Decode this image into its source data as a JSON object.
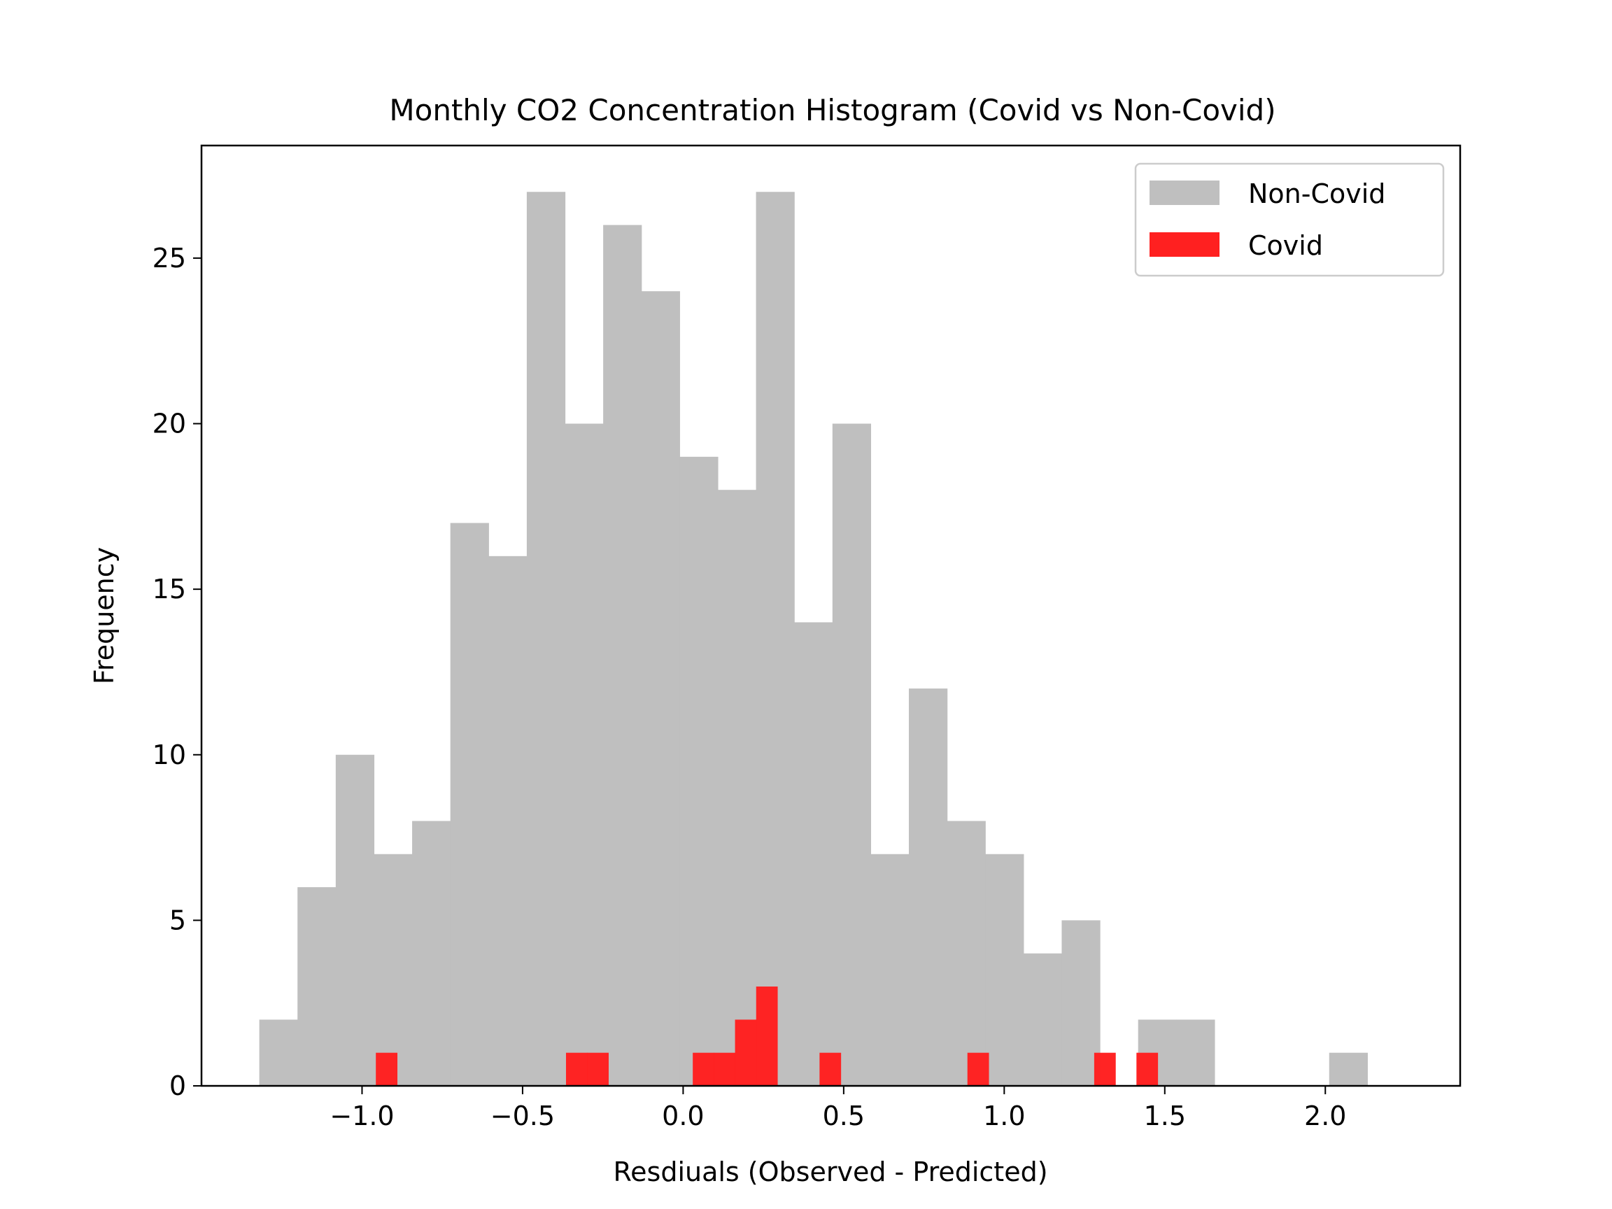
{
  "chart_data": {
    "type": "bar",
    "title": "Monthly CO2 Concentration Histogram (Covid vs Non-Covid)",
    "xlabel": "Resdiuals (Observed - Predicted)",
    "ylabel": "Frequency",
    "xlim": [
      -1.5,
      2.42
    ],
    "ylim": [
      0,
      28.4
    ],
    "xticks": [
      {
        "value": -1.0,
        "label": "−1.0"
      },
      {
        "value": -0.5,
        "label": "−0.5"
      },
      {
        "value": 0.0,
        "label": "0.0"
      },
      {
        "value": 0.5,
        "label": "0.5"
      },
      {
        "value": 1.0,
        "label": "1.0"
      },
      {
        "value": 1.5,
        "label": "1.5"
      },
      {
        "value": 2.0,
        "label": "2.0"
      }
    ],
    "yticks": [
      {
        "value": 0,
        "label": "0"
      },
      {
        "value": 5,
        "label": "5"
      },
      {
        "value": 10,
        "label": "10"
      },
      {
        "value": 15,
        "label": "15"
      },
      {
        "value": 20,
        "label": "20"
      },
      {
        "value": 25,
        "label": "25"
      }
    ],
    "grid": false,
    "legend_position": "top-right",
    "series": [
      {
        "name": "Non-Covid",
        "color": "#bfbfbf",
        "bin_start": -1.32,
        "bin_width": 0.119,
        "values": [
          2,
          6,
          10,
          7,
          8,
          17,
          16,
          27,
          20,
          26,
          24,
          19,
          18,
          27,
          14,
          20,
          7,
          12,
          8,
          7,
          4,
          5,
          0,
          2,
          2,
          0,
          0,
          0,
          1,
          0
        ]
      },
      {
        "name": "Covid",
        "color": "#ff2020",
        "bin_start": -0.957,
        "bin_width": 0.0658,
        "values": [
          1,
          0,
          0,
          0,
          0,
          0,
          0,
          0,
          0,
          1,
          1,
          0,
          0,
          0,
          0,
          1,
          1,
          2,
          3,
          0,
          0,
          1,
          0,
          0,
          0,
          0,
          0,
          0,
          1,
          0,
          0,
          0,
          0,
          0,
          1,
          0,
          1,
          0
        ]
      }
    ]
  }
}
